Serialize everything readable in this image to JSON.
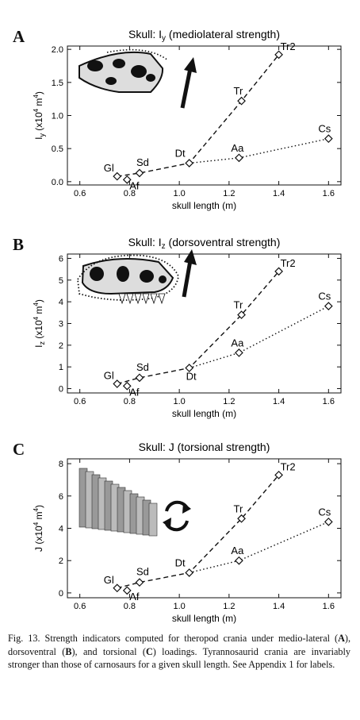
{
  "panels": [
    {
      "letter": "A",
      "chart_data": {
        "type": "scatter",
        "title": "Skull: Iy (mediolateral strength)",
        "title_main": "Skull: I",
        "title_sub": "y",
        "title_rest": "(mediolateral strength)",
        "xlabel": "skull length (m)",
        "ylabel_main": "I",
        "ylabel_sub": "y",
        "ylabel_rest": " (x10",
        "ylabel_exp": "4",
        "ylabel_unit": " m",
        "ylabel_unit_exp": "4",
        "ylabel_close": ")",
        "xlim": [
          0.55,
          1.65
        ],
        "ylim": [
          -0.05,
          2.05
        ],
        "xticks": [
          "0.6",
          "0.8",
          "1.0",
          "1.2",
          "1.4",
          "1.6"
        ],
        "yticks": [
          "0.0",
          "0.5",
          "1.0",
          "1.5",
          "2.0"
        ],
        "legend": "none",
        "grid": false,
        "points": [
          {
            "label": "Gl",
            "x": 0.75,
            "y": 0.08
          },
          {
            "label": "Af",
            "x": 0.79,
            "y": 0.03
          },
          {
            "label": "Sd",
            "x": 0.84,
            "y": 0.13
          },
          {
            "label": "Dt",
            "x": 1.04,
            "y": 0.28
          },
          {
            "label": "Tr",
            "x": 1.25,
            "y": 1.22
          },
          {
            "label": "Tr2",
            "x": 1.4,
            "y": 1.92
          },
          {
            "label": "Aa",
            "x": 1.24,
            "y": 0.36
          },
          {
            "label": "Cs",
            "x": 1.6,
            "y": 0.65
          }
        ],
        "series": [
          {
            "style": "dashed",
            "points": [
              "Gl",
              "Sd",
              "Dt",
              "Tr",
              "Tr2"
            ]
          },
          {
            "style": "dotted",
            "points": [
              "Dt",
              "Aa",
              "Cs"
            ]
          }
        ]
      }
    },
    {
      "letter": "B",
      "chart_data": {
        "type": "scatter",
        "title": "Skull: Iz (dorsoventral strength)",
        "title_main": "Skull: I",
        "title_sub": "z",
        "title_rest": "(dorsoventral strength)",
        "xlabel": "skull length (m)",
        "ylabel_main": "I",
        "ylabel_sub": "z",
        "ylabel_rest": " (x10",
        "ylabel_exp": "4",
        "ylabel_unit": " m",
        "ylabel_unit_exp": "4",
        "ylabel_close": ")",
        "xlim": [
          0.55,
          1.65
        ],
        "ylim": [
          -0.2,
          6.2
        ],
        "xticks": [
          "0.6",
          "0.8",
          "1.0",
          "1.2",
          "1.4",
          "1.6"
        ],
        "yticks": [
          "0",
          "1",
          "2",
          "3",
          "4",
          "5",
          "6"
        ],
        "legend": "none",
        "grid": false,
        "points": [
          {
            "label": "Gl",
            "x": 0.75,
            "y": 0.22
          },
          {
            "label": "Af",
            "x": 0.79,
            "y": 0.12
          },
          {
            "label": "Sd",
            "x": 0.84,
            "y": 0.5
          },
          {
            "label": "Dt",
            "x": 1.04,
            "y": 0.95
          },
          {
            "label": "Tr",
            "x": 1.25,
            "y": 3.4
          },
          {
            "label": "Tr2",
            "x": 1.4,
            "y": 5.4
          },
          {
            "label": "Aa",
            "x": 1.24,
            "y": 1.65
          },
          {
            "label": "Cs",
            "x": 1.6,
            "y": 3.8
          }
        ],
        "series": [
          {
            "style": "dashed",
            "points": [
              "Gl",
              "Sd",
              "Dt",
              "Tr",
              "Tr2"
            ]
          },
          {
            "style": "dotted",
            "points": [
              "Dt",
              "Aa",
              "Cs"
            ]
          }
        ]
      }
    },
    {
      "letter": "C",
      "chart_data": {
        "type": "scatter",
        "title": "Skull: J (torsional strength)",
        "title_main": "Skull: J (torsional strength)",
        "title_sub": "",
        "title_rest": "",
        "xlabel": "skull length (m)",
        "ylabel_main": "J",
        "ylabel_sub": "",
        "ylabel_rest": " (x10",
        "ylabel_exp": "4",
        "ylabel_unit": " m",
        "ylabel_unit_exp": "4",
        "ylabel_close": ")",
        "xlim": [
          0.55,
          1.65
        ],
        "ylim": [
          -0.3,
          8.3
        ],
        "xticks": [
          "0.6",
          "0.8",
          "1.0",
          "1.2",
          "1.4",
          "1.6"
        ],
        "yticks": [
          "0",
          "2",
          "4",
          "6",
          "8"
        ],
        "legend": "none",
        "grid": false,
        "points": [
          {
            "label": "Gl",
            "x": 0.75,
            "y": 0.3
          },
          {
            "label": "Af",
            "x": 0.79,
            "y": 0.15
          },
          {
            "label": "Sd",
            "x": 0.84,
            "y": 0.65
          },
          {
            "label": "Dt",
            "x": 1.04,
            "y": 1.25
          },
          {
            "label": "Tr",
            "x": 1.25,
            "y": 4.6
          },
          {
            "label": "Tr2",
            "x": 1.4,
            "y": 7.3
          },
          {
            "label": "Aa",
            "x": 1.24,
            "y": 2.0
          },
          {
            "label": "Cs",
            "x": 1.6,
            "y": 4.4
          }
        ],
        "series": [
          {
            "style": "dashed",
            "points": [
              "Gl",
              "Sd",
              "Dt",
              "Tr",
              "Tr2"
            ]
          },
          {
            "style": "dotted",
            "points": [
              "Dt",
              "Aa",
              "Cs"
            ]
          }
        ]
      }
    }
  ],
  "caption": {
    "fig": "Fig. 13.",
    "t1": " Strength indicators computed for theropod crania under medio-lateral (",
    "a": "A",
    "t2": "), dorsoventral (",
    "b": "B",
    "t3": "), and torsional (",
    "c": "C",
    "t4": ") loadings. Tyrannosaurid crania are invariably stronger than those of carnosaurs for a given skull length. See Appendix 1 for labels."
  }
}
